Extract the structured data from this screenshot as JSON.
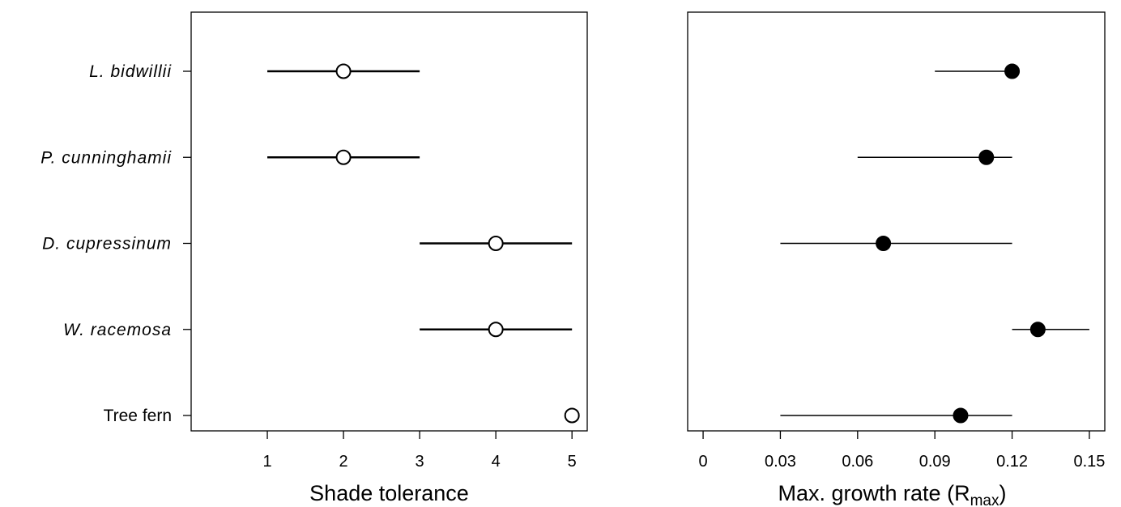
{
  "chart_data": [
    {
      "type": "scatter",
      "title": "",
      "xlabel": "Shade tolerance",
      "ylabel": "",
      "categories": [
        "L. bidwillii",
        "P. cunninghamii",
        "D. cupressinum",
        "W. racemosa",
        "Tree fern"
      ],
      "category_italic": [
        true,
        true,
        true,
        true,
        false
      ],
      "x_ticks": [
        "1",
        "2",
        "3",
        "4",
        "5"
      ],
      "xlim": [
        0,
        5.2
      ],
      "marker": "open-circle",
      "points": [
        {
          "category": "L. bidwillii",
          "value": 2,
          "low": 1,
          "high": 3
        },
        {
          "category": "P. cunninghamii",
          "value": 2,
          "low": 1,
          "high": 3
        },
        {
          "category": "D. cupressinum",
          "value": 4,
          "low": 3,
          "high": 5
        },
        {
          "category": "W. racemosa",
          "value": 4,
          "low": 3,
          "high": 5
        },
        {
          "category": "Tree fern",
          "value": 5,
          "low": 5,
          "high": 5
        }
      ]
    },
    {
      "type": "scatter",
      "title": "",
      "xlabel": "Max. growth rate (R",
      "xlabel_subscript": "max",
      "xlabel_suffix": ")",
      "ylabel": "",
      "categories": [
        "L. bidwillii",
        "P. cunninghamii",
        "D. cupressinum",
        "W. racemosa",
        "Tree fern"
      ],
      "x_ticks": [
        "0",
        "0.03",
        "0.06",
        "0.09",
        "0.12",
        "0.15"
      ],
      "xlim": [
        -0.006,
        0.156
      ],
      "marker": "filled-circle",
      "points": [
        {
          "category": "L. bidwillii",
          "value": 0.12,
          "low": 0.09,
          "high": 0.12
        },
        {
          "category": "P. cunninghamii",
          "value": 0.11,
          "low": 0.06,
          "high": 0.12
        },
        {
          "category": "D. cupressinum",
          "value": 0.07,
          "low": 0.03,
          "high": 0.12
        },
        {
          "category": "W. racemosa",
          "value": 0.13,
          "low": 0.12,
          "high": 0.15
        },
        {
          "category": "Tree fern",
          "value": 0.1,
          "low": 0.03,
          "high": 0.12
        }
      ]
    }
  ]
}
